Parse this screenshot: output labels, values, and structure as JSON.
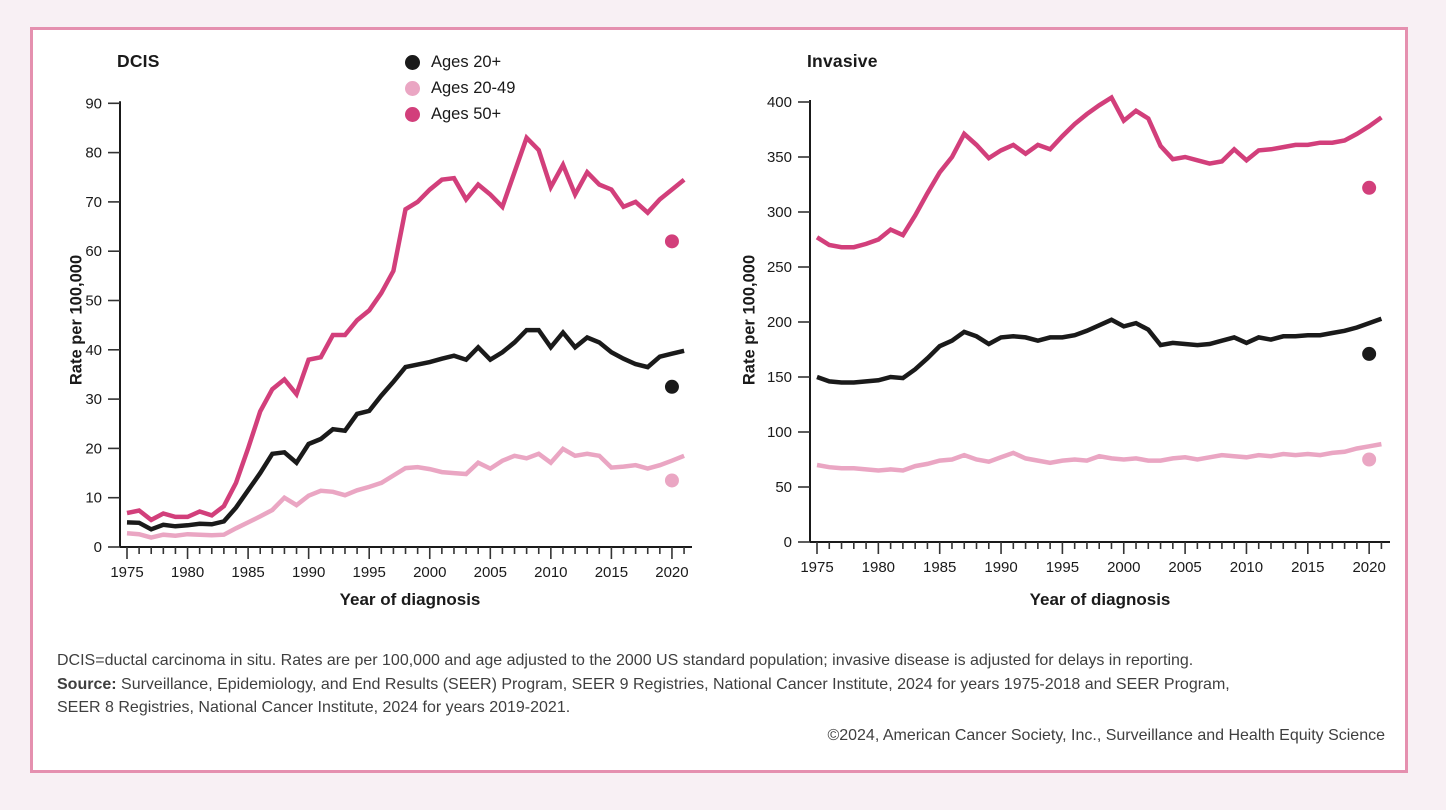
{
  "legend": {
    "items": [
      {
        "label": "Ages 20+",
        "color": "#1a1a1a"
      },
      {
        "label": "Ages 20-49",
        "color": "#eaa6c3"
      },
      {
        "label": "Ages 50+",
        "color": "#d23f7b"
      }
    ]
  },
  "chart_data": [
    {
      "type": "line",
      "title": "DCIS",
      "xlabel": "Year of diagnosis",
      "ylabel": "Rate per 100,000",
      "ylim": [
        0,
        90
      ],
      "ytick_step": 10,
      "x_start": 1975,
      "x_end": 2021,
      "xtick_labels": [
        1975,
        1980,
        1985,
        1990,
        1995,
        2000,
        2005,
        2010,
        2015,
        2020
      ],
      "grid": false,
      "series": [
        {
          "name": "Ages 20+",
          "color": "#1a1a1a",
          "values": [
            5,
            4.9,
            3.6,
            4.5,
            4.2,
            4.4,
            4.7,
            4.6,
            5.2,
            8,
            11.5,
            15,
            18.9,
            19.2,
            17.1,
            20.9,
            21.9,
            23.9,
            23.6,
            27,
            27.6,
            30.7,
            33.5,
            36.5,
            37,
            37.5,
            38.2,
            38.8,
            38,
            40.5,
            38,
            39.5,
            41.5,
            44,
            44,
            40.5,
            43.5,
            40.5,
            42.5,
            41.5,
            39.5,
            38.2,
            37.1,
            36.5,
            38.6,
            39.2,
            39.8
          ]
        },
        {
          "name": "Ages 20-49",
          "color": "#eaa6c3",
          "values": [
            2.8,
            2.6,
            1.9,
            2.5,
            2.3,
            2.6,
            2.5,
            2.4,
            2.5,
            3.8,
            5,
            6.2,
            7.5,
            10,
            8.5,
            10.4,
            11.4,
            11.2,
            10.5,
            11.5,
            12.2,
            13,
            14.5,
            16,
            16.2,
            15.8,
            15.2,
            15,
            14.8,
            17.1,
            15.9,
            17.5,
            18.5,
            18,
            18.9,
            17.1,
            19.9,
            18.5,
            18.9,
            18.5,
            16.1,
            16.3,
            16.6,
            15.9,
            16.6,
            17.5,
            18.5
          ]
        },
        {
          "name": "Ages 50+",
          "color": "#d23f7b",
          "values": [
            6.9,
            7.4,
            5.5,
            6.8,
            6.1,
            6.1,
            7.2,
            6.4,
            8.3,
            13,
            20,
            27.5,
            32,
            34,
            31,
            38,
            38.5,
            43,
            43,
            46,
            48,
            51.5,
            56,
            68.5,
            70,
            72.5,
            74.5,
            74.8,
            70.5,
            73.5,
            71.5,
            69,
            76,
            83,
            80.5,
            73,
            77.5,
            71.5,
            76,
            73.5,
            72.5,
            69,
            70,
            67.8,
            70.5,
            72.5,
            74.5
          ]
        }
      ],
      "points_2020": [
        {
          "name": "Ages 20+",
          "x": 2020,
          "value": 32.5,
          "color": "#1a1a1a"
        },
        {
          "name": "Ages 20-49",
          "x": 2020,
          "value": 13.5,
          "color": "#eaa6c3"
        },
        {
          "name": "Ages 50+",
          "x": 2020,
          "value": 62,
          "color": "#d23f7b"
        }
      ]
    },
    {
      "type": "line",
      "title": "Invasive",
      "xlabel": "Year of diagnosis",
      "ylabel": "Rate per 100,000",
      "ylim": [
        0,
        400
      ],
      "ytick_step": 50,
      "x_start": 1975,
      "x_end": 2021,
      "xtick_labels": [
        1975,
        1980,
        1985,
        1990,
        1995,
        2000,
        2005,
        2010,
        2015,
        2020
      ],
      "grid": false,
      "series": [
        {
          "name": "Ages 20+",
          "color": "#1a1a1a",
          "values": [
            150,
            146,
            145,
            145,
            146,
            147,
            150,
            149,
            157,
            167,
            178,
            183,
            191,
            187,
            180,
            186,
            187,
            186,
            183,
            186,
            186,
            188,
            192,
            197,
            202,
            196,
            199,
            193,
            179,
            181,
            180,
            179,
            180,
            183,
            186,
            181,
            186,
            184,
            187,
            187,
            188,
            188,
            190,
            192,
            195,
            199,
            203
          ]
        },
        {
          "name": "Ages 20-49",
          "color": "#eaa6c3",
          "values": [
            70,
            68,
            67,
            67,
            66,
            65,
            66,
            65,
            69,
            71,
            74,
            75,
            79,
            75,
            73,
            77,
            81,
            76,
            74,
            72,
            74,
            75,
            74,
            78,
            76,
            75,
            76,
            74,
            74,
            76,
            77,
            75,
            77,
            79,
            78,
            77,
            79,
            78,
            80,
            79,
            80,
            79,
            81,
            82,
            85,
            87,
            89
          ]
        },
        {
          "name": "Ages 50+",
          "color": "#d23f7b",
          "values": [
            277,
            270,
            268,
            268,
            271,
            275,
            284,
            279,
            297,
            317,
            336,
            350,
            371,
            361,
            349,
            356,
            361,
            353,
            361,
            357,
            369,
            380,
            389,
            397,
            404,
            383,
            392,
            385,
            360,
            348,
            350,
            347,
            344,
            346,
            357,
            347,
            356,
            357,
            359,
            361,
            361,
            363,
            363,
            365,
            371,
            378,
            386
          ]
        }
      ],
      "points_2020": [
        {
          "name": "Ages 20+",
          "x": 2020,
          "value": 171,
          "color": "#1a1a1a"
        },
        {
          "name": "Ages 20-49",
          "x": 2020,
          "value": 75,
          "color": "#eaa6c3"
        },
        {
          "name": "Ages 50+",
          "x": 2020,
          "value": 322,
          "color": "#d23f7b"
        }
      ]
    }
  ],
  "footnotes": {
    "line1": "DCIS=ductal carcinoma in situ. Rates are per 100,000 and age adjusted to the 2000 US standard population; invasive disease is adjusted for delays in reporting.",
    "source_label": "Source:",
    "source_line1": "Surveillance, Epidemiology, and End Results (SEER) Program, SEER 9 Registries, National Cancer Institute, 2024 for years 1975-2018 and SEER Program,",
    "source_line2": "SEER 8 Registries, National Cancer Institute, 2024 for years 2019-2021.",
    "copyright": "©2024, American Cancer Society, Inc., Surveillance and Health Equity Science"
  }
}
